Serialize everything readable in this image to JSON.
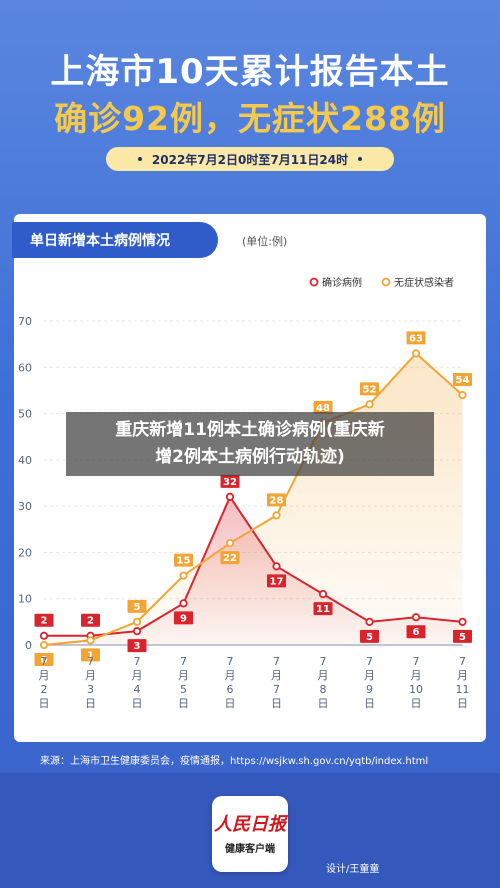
{
  "header": {
    "title_line1": "上海市10天累计报告本土",
    "title_line2": "确诊92例，无症状288例",
    "date_range": "2022年7月2日0时至7月11日24时"
  },
  "chart_card": {
    "tab_title": "单日新增本土病例情况",
    "unit": "(单位:例)"
  },
  "chart_data": {
    "type": "line",
    "categories": [
      "7月2日",
      "7月3日",
      "7月4日",
      "7月5日",
      "7月6日",
      "7月7日",
      "7月8日",
      "7月9日",
      "7月10日",
      "7月11日"
    ],
    "category_lines": [
      [
        "7",
        "月",
        "2",
        "日"
      ],
      [
        "7",
        "月",
        "3",
        "日"
      ],
      [
        "7",
        "月",
        "4",
        "日"
      ],
      [
        "7",
        "月",
        "5",
        "日"
      ],
      [
        "7",
        "月",
        "6",
        "日"
      ],
      [
        "7",
        "月",
        "7",
        "日"
      ],
      [
        "7",
        "月",
        "8",
        "日"
      ],
      [
        "7",
        "月",
        "9",
        "日"
      ],
      [
        "7",
        "月",
        "10",
        "日"
      ],
      [
        "7",
        "月",
        "11",
        "日"
      ]
    ],
    "series": [
      {
        "name": "确诊病例",
        "color": "#d8242c",
        "values": [
          2,
          2,
          3,
          9,
          32,
          17,
          11,
          5,
          6,
          5
        ]
      },
      {
        "name": "无症状感染者",
        "color": "#f2a535",
        "values": [
          0,
          1,
          5,
          15,
          22,
          28,
          48,
          52,
          63,
          54
        ]
      }
    ],
    "ylim": [
      0,
      70
    ],
    "yticks": [
      0,
      10,
      20,
      30,
      40,
      50,
      60,
      70
    ],
    "grid": true,
    "legend": "top-right",
    "xlabel": "",
    "ylabel": ""
  },
  "source": "来源：上海市卫生健康委员会，疫情通报，https://wsjkw.sh.gov.cn/yqtb/index.html",
  "footer": {
    "logo_name": "人民日报",
    "logo_sub": "健康客户端",
    "credit": "设计/王童童"
  },
  "overlay": {
    "line1": "重庆新增11例本土确诊病例(重庆新",
    "line2": "增2例本土病例行动轨迹)"
  }
}
